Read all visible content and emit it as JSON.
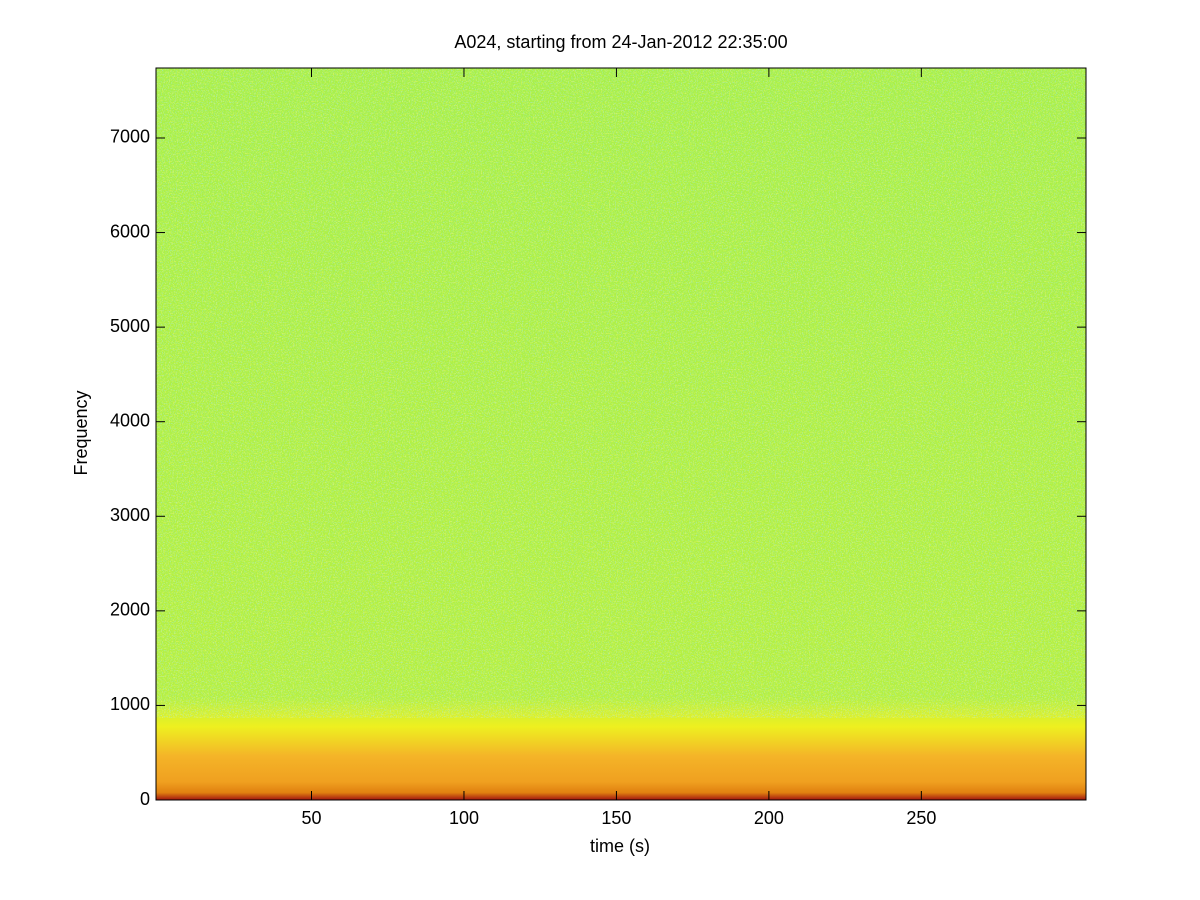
{
  "chart_data": {
    "type": "spectrogram",
    "title": "A024, starting from 24-Jan-2012 22:35:00",
    "xlabel": "time (s)",
    "ylabel": "Frequency",
    "xlim": [
      -1,
      304
    ],
    "xticks": [
      50,
      100,
      150,
      200,
      250
    ],
    "ylim": [
      0,
      7740
    ],
    "yticks": [
      0,
      1000,
      2000,
      3000,
      4000,
      5000,
      6000,
      7000
    ]
  }
}
